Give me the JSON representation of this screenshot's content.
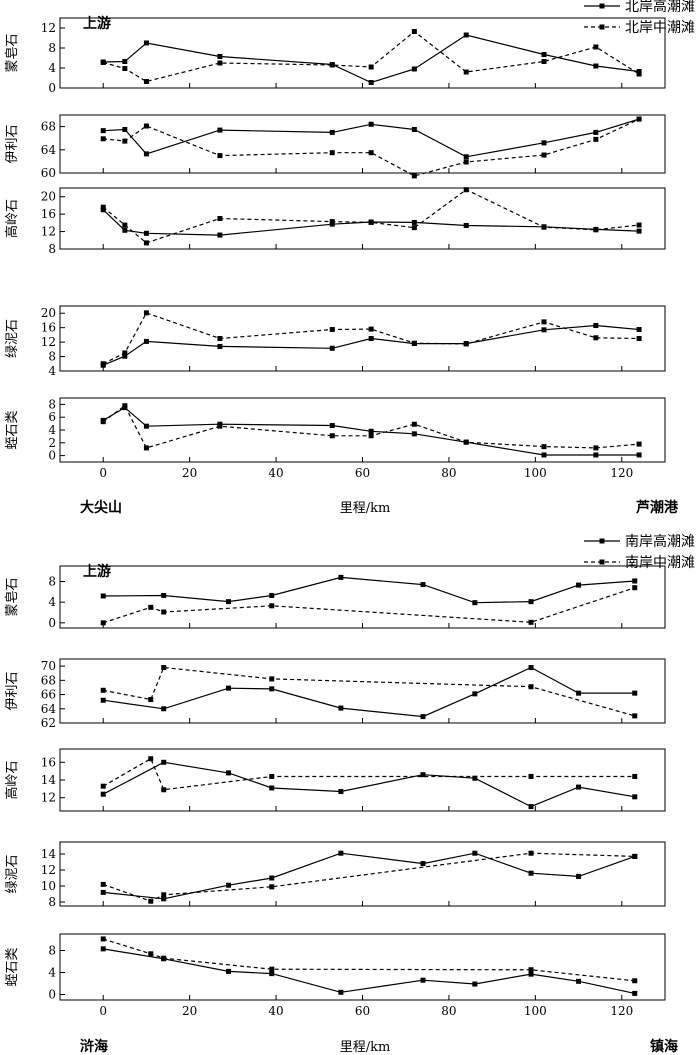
{
  "chart_data": [
    {
      "type": "line",
      "group": "north",
      "upstream_label": "上游",
      "x_axis": {
        "label": "里程/km",
        "start_label": "大尖山",
        "end_label": "芦潮港",
        "xlim": [
          -10,
          130
        ],
        "ticks": [
          0,
          20,
          40,
          60,
          80,
          100,
          120
        ]
      },
      "legend": [
        {
          "name": "北岸高潮滩",
          "style": "solid"
        },
        {
          "name": "北岸中潮滩",
          "style": "dashed"
        }
      ],
      "panels": [
        {
          "ylabel": "蒙皂石",
          "ylim": [
            0,
            14
          ],
          "yticks": [
            0,
            4,
            8,
            12
          ],
          "series": [
            {
              "name": "北岸高潮滩",
              "x": [
                0,
                5,
                10,
                27,
                53,
                62,
                72,
                84,
                102,
                114,
                124
              ],
              "y": [
                5.2,
                5.3,
                9.0,
                6.3,
                4.7,
                1.1,
                3.8,
                10.6,
                6.7,
                4.4,
                3.3
              ]
            },
            {
              "name": "北岸中潮滩",
              "x": [
                0,
                5,
                10,
                27,
                53,
                62,
                72,
                84,
                102,
                114,
                124
              ],
              "y": [
                5.1,
                3.9,
                1.3,
                5.0,
                4.6,
                4.2,
                11.3,
                3.2,
                5.3,
                8.2,
                2.8
              ]
            }
          ]
        },
        {
          "ylabel": "伊利石",
          "ylim": [
            60,
            70
          ],
          "yticks": [
            60,
            64,
            68
          ],
          "series": [
            {
              "name": "北岸高潮滩",
              "x": [
                0,
                5,
                10,
                27,
                53,
                62,
                72,
                84,
                102,
                114,
                124
              ],
              "y": [
                67.3,
                67.5,
                63.3,
                67.4,
                67.0,
                68.4,
                67.5,
                62.8,
                65.2,
                67.0,
                69.3
              ]
            },
            {
              "name": "北岸中潮滩",
              "x": [
                0,
                5,
                10,
                27,
                53,
                62,
                72,
                84,
                102,
                114,
                124
              ],
              "y": [
                65.9,
                65.5,
                68.1,
                63.0,
                63.5,
                63.5,
                59.5,
                61.9,
                63.1,
                65.8,
                69.3
              ]
            }
          ]
        },
        {
          "ylabel": "高岭石",
          "ylim": [
            8,
            22
          ],
          "yticks": [
            8,
            12,
            16,
            20
          ],
          "series": [
            {
              "name": "北岸高潮滩",
              "x": [
                0,
                5,
                10,
                27,
                53,
                62,
                72,
                84,
                102,
                114,
                124
              ],
              "y": [
                17.0,
                12.3,
                11.6,
                11.2,
                13.7,
                14.2,
                14.1,
                13.4,
                13.1,
                12.5,
                12.1
              ]
            },
            {
              "name": "北岸中潮滩",
              "x": [
                0,
                5,
                10,
                27,
                53,
                62,
                72,
                84,
                102,
                114,
                124
              ],
              "y": [
                17.6,
                13.5,
                9.4,
                15.0,
                14.3,
                14.1,
                12.9,
                21.6,
                13.0,
                12.4,
                13.5
              ]
            }
          ]
        },
        {
          "ylabel": "绿泥石",
          "ylim": [
            4,
            22
          ],
          "yticks": [
            4,
            8,
            12,
            16,
            20
          ],
          "series": [
            {
              "name": "北岸高潮滩",
              "x": [
                0,
                5,
                10,
                27,
                53,
                62,
                72,
                84,
                102,
                114,
                124
              ],
              "y": [
                5.6,
                8.1,
                12.2,
                10.8,
                10.3,
                13.0,
                11.6,
                11.6,
                15.4,
                16.6,
                15.5
              ]
            },
            {
              "name": "北岸中潮滩",
              "x": [
                0,
                5,
                10,
                27,
                53,
                62,
                72,
                84,
                102,
                114,
                124
              ],
              "y": [
                6.0,
                9.0,
                20.1,
                13.0,
                15.5,
                15.6,
                11.7,
                11.5,
                17.6,
                13.2,
                13.0
              ]
            }
          ]
        },
        {
          "ylabel": "蛭石类",
          "ylim": [
            -1,
            9
          ],
          "yticks": [
            0,
            2,
            4,
            6,
            8
          ],
          "series": [
            {
              "name": "北岸高潮滩",
              "x": [
                0,
                5,
                10,
                27,
                53,
                62,
                72,
                84,
                102,
                114,
                124
              ],
              "y": [
                5.5,
                7.5,
                4.6,
                4.9,
                4.7,
                3.8,
                3.4,
                2.1,
                0.1,
                0.1,
                0.1
              ]
            },
            {
              "name": "北岸中潮滩",
              "x": [
                0,
                5,
                10,
                27,
                53,
                62,
                72,
                84,
                102,
                114,
                124
              ],
              "y": [
                5.3,
                7.8,
                1.2,
                4.6,
                3.1,
                3.1,
                4.9,
                2.1,
                1.4,
                1.2,
                1.8
              ]
            }
          ]
        }
      ]
    },
    {
      "type": "line",
      "group": "south",
      "upstream_label": "上游",
      "x_axis": {
        "label": "里程/km",
        "start_label": "浒海",
        "end_label": "镇海",
        "xlim": [
          -10,
          130
        ],
        "ticks": [
          0,
          20,
          40,
          60,
          80,
          100,
          120
        ]
      },
      "legend": [
        {
          "name": "南岸高潮滩",
          "style": "solid"
        },
        {
          "name": "南岸中潮滩",
          "style": "dashed"
        }
      ],
      "panels": [
        {
          "ylabel": "蒙皂石",
          "ylim": [
            -1,
            11
          ],
          "yticks": [
            0,
            4,
            8
          ],
          "series": [
            {
              "name": "南岸高潮滩",
              "x": [
                0,
                14,
                29,
                39,
                55,
                74,
                86,
                99,
                110,
                123
              ],
              "y": [
                5.2,
                5.3,
                4.1,
                5.3,
                8.8,
                7.4,
                3.9,
                4.1,
                7.3,
                8.1
              ]
            },
            {
              "name": "南岸中潮滩",
              "x": [
                0,
                11,
                14,
                39,
                99,
                123
              ],
              "y": [
                0.0,
                3.0,
                2.1,
                3.3,
                0.1,
                6.8
              ]
            }
          ]
        },
        {
          "ylabel": "伊利石",
          "ylim": [
            62,
            71
          ],
          "yticks": [
            62,
            64,
            66,
            68,
            70
          ],
          "series": [
            {
              "name": "南岸高潮滩",
              "x": [
                0,
                14,
                29,
                39,
                55,
                74,
                86,
                99,
                110,
                123
              ],
              "y": [
                65.2,
                64.0,
                66.9,
                66.8,
                64.1,
                62.9,
                66.1,
                69.8,
                66.2,
                66.2
              ]
            },
            {
              "name": "南岸中潮滩",
              "x": [
                0,
                11,
                14,
                39,
                99,
                123
              ],
              "y": [
                66.6,
                65.3,
                69.8,
                68.2,
                67.1,
                63.0
              ]
            }
          ]
        },
        {
          "ylabel": "高岭石",
          "ylim": [
            10.5,
            17.5
          ],
          "yticks": [
            12,
            14,
            16
          ],
          "series": [
            {
              "name": "南岸高潮滩",
              "x": [
                0,
                14,
                29,
                39,
                55,
                74,
                86,
                99,
                110,
                123
              ],
              "y": [
                12.4,
                16.0,
                14.8,
                13.1,
                12.7,
                14.6,
                14.2,
                11.0,
                13.2,
                12.1
              ]
            },
            {
              "name": "南岸中潮滩",
              "x": [
                0,
                11,
                14,
                39,
                99,
                123
              ],
              "y": [
                13.3,
                16.4,
                12.9,
                14.4,
                14.4,
                14.4
              ]
            }
          ]
        },
        {
          "ylabel": "绿泥石",
          "ylim": [
            7.5,
            15.5
          ],
          "yticks": [
            8,
            10,
            12,
            14
          ],
          "series": [
            {
              "name": "南岸高潮滩",
              "x": [
                0,
                14,
                29,
                39,
                55,
                74,
                86,
                99,
                110,
                123
              ],
              "y": [
                9.2,
                8.4,
                10.1,
                11.0,
                14.1,
                12.8,
                14.1,
                11.6,
                11.2,
                13.7
              ]
            },
            {
              "name": "南岸中潮滩",
              "x": [
                0,
                11,
                14,
                39,
                99,
                123
              ],
              "y": [
                10.2,
                8.1,
                8.9,
                9.9,
                14.1,
                13.7
              ]
            }
          ]
        },
        {
          "ylabel": "蛭石类",
          "ylim": [
            -1,
            11
          ],
          "yticks": [
            0,
            4,
            8
          ],
          "series": [
            {
              "name": "南岸高潮滩",
              "x": [
                0,
                14,
                29,
                39,
                55,
                74,
                86,
                99,
                110,
                123
              ],
              "y": [
                8.3,
                6.5,
                4.2,
                3.8,
                0.4,
                2.6,
                1.9,
                3.7,
                2.4,
                0.2
              ]
            },
            {
              "name": "南岸中潮滩",
              "x": [
                0,
                11,
                14,
                39,
                99,
                123
              ],
              "y": [
                10.1,
                7.4,
                6.6,
                4.6,
                4.5,
                2.5
              ]
            }
          ]
        }
      ]
    }
  ]
}
